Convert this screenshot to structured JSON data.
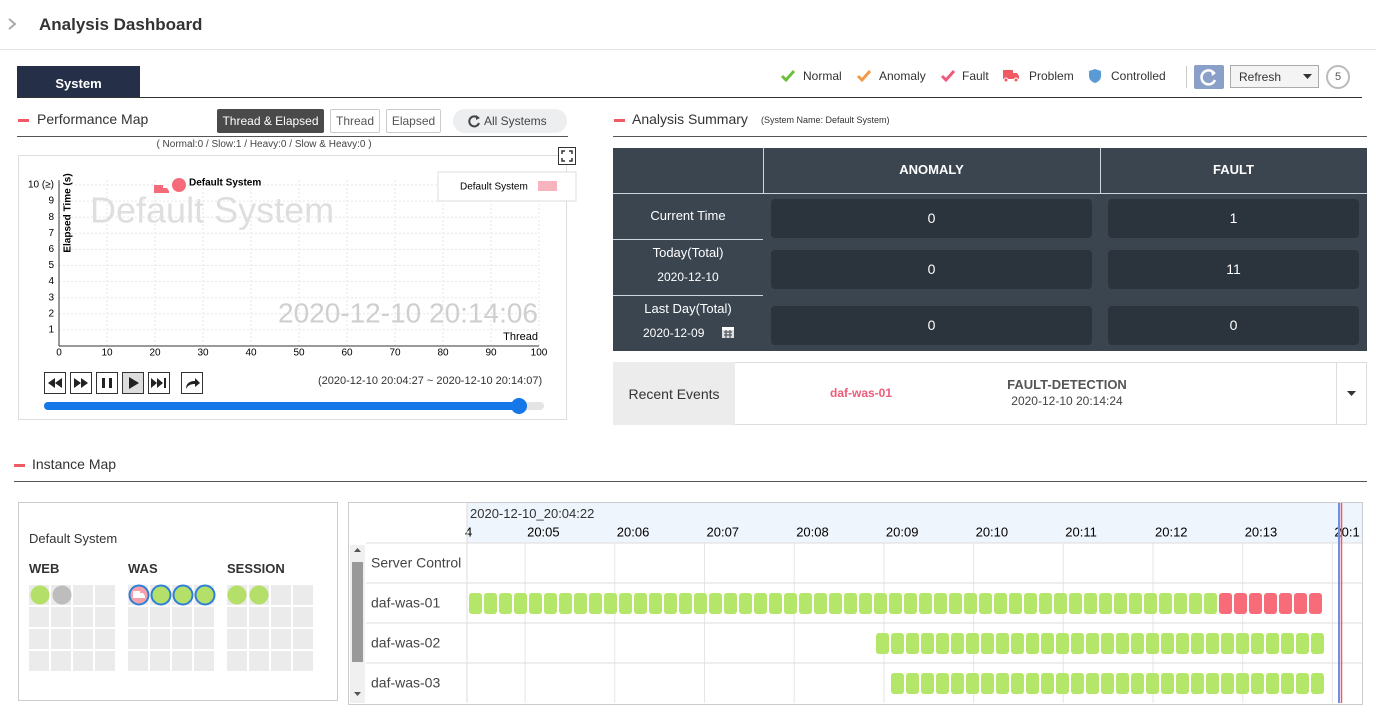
{
  "header": {
    "title": "Analysis Dashboard"
  },
  "tabs": [
    "System"
  ],
  "status_legend": [
    "Normal",
    "Anomaly",
    "Fault",
    "Problem",
    "Controlled"
  ],
  "refresh": {
    "label": "Refresh",
    "count": 5
  },
  "performance_map": {
    "title": "Performance Map",
    "buttons": [
      "Thread & Elapsed",
      "Thread",
      "Elapsed"
    ],
    "all_systems": "All Systems",
    "summary": "( Normal:0 / Slow:1 / Heavy:0 / Slow & Heavy:0 )",
    "watermark": "Default System",
    "timestamp": "2020-12-10 20:14:06",
    "time_range": "(2020-12-10 20:04:27 ~ 2020-12-10 20:14:07)",
    "chart": {
      "type": "scatter",
      "x_label": "Thread",
      "y_label": "Elapsed Time (s)",
      "series": [
        {
          "name": "Default System",
          "color": "#f56b79",
          "x": [
            25
          ],
          "values": [
            10
          ]
        }
      ],
      "xlim": [
        0,
        100
      ],
      "ylim": [
        0,
        10.3
      ],
      "xticks": [
        0,
        10,
        20,
        30,
        40,
        50,
        60,
        70,
        80,
        90,
        100
      ],
      "yticks": [
        1,
        2,
        3,
        4,
        5,
        6,
        7,
        8,
        9,
        {
          "value": 10,
          "label": "10 (≥)"
        }
      ],
      "grid": true
    }
  },
  "analysis_summary": {
    "title": "Analysis Summary",
    "system_name": "(System Name: Default System)",
    "columns": [
      "ANOMALY",
      "FAULT"
    ],
    "rows": [
      {
        "label": "Current Time",
        "values": [
          0,
          1
        ]
      },
      {
        "label": "Today(Total)",
        "date": "2020-12-10",
        "values": [
          0,
          11
        ]
      },
      {
        "label": "Last Day(Total)",
        "date": "2020-12-09",
        "values": [
          0,
          0
        ]
      }
    ]
  },
  "recent_events": {
    "label": "Recent Events",
    "server": "daf-was-01",
    "event": "FAULT-DETECTION",
    "time": "2020-12-10 20:14:24"
  },
  "instance_map": {
    "title": "Instance Map",
    "system": "Default System",
    "groups": [
      "WEB",
      "WAS",
      "SESSION"
    ]
  },
  "timeline": {
    "start": "2020-12-10_20:04:22",
    "times": [
      "4",
      "20:05",
      "20:06",
      "20:07",
      "20:08",
      "20:09",
      "20:10",
      "20:11",
      "20:12",
      "20:13",
      "20:1"
    ],
    "rows": [
      "Server Control",
      "daf-was-01",
      "daf-was-02",
      "daf-was-03"
    ]
  }
}
